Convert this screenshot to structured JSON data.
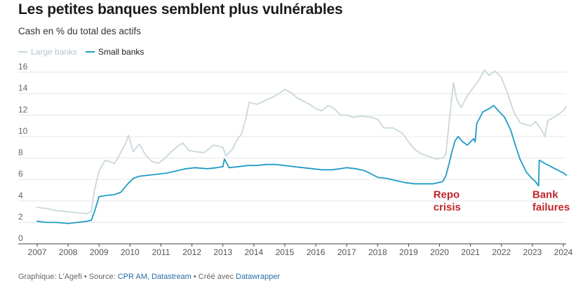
{
  "title": "Les petites banques semblent plus vulnérables",
  "subtitle": "Cash en % du total des actifs",
  "legend": {
    "large": "Large banks",
    "small": "Small banks"
  },
  "footer": {
    "prefix": "Graphique: L'Agefi • Source: ",
    "source_link": "CPR AM, Datastream",
    "middle": " • Créé avec ",
    "tool_link": "Datawrapper"
  },
  "colors": {
    "large": "#c8d8db",
    "small": "#1f9cc4",
    "annotation": "#c0262d",
    "grid": "#e6e6e6"
  },
  "chart_data": {
    "type": "line",
    "title": "Les petites banques semblent plus vulnérables",
    "ylabel": "Cash en % du total des actifs",
    "xlabel": "",
    "xlim": [
      2007,
      2024
    ],
    "ylim": [
      0,
      16
    ],
    "yticks": [
      0,
      2,
      4,
      6,
      8,
      10,
      12,
      14,
      16
    ],
    "xticks": [
      "2007",
      "2008",
      "2009",
      "2010",
      "2011",
      "2012",
      "2013",
      "2014",
      "2015",
      "2016",
      "2017",
      "2018",
      "2019",
      "2020",
      "2021",
      "2022",
      "2023",
      "2024"
    ],
    "grid": true,
    "legend_position": "top-left",
    "annotations": [
      {
        "lines": [
          "Repo",
          "crisis"
        ],
        "x": 2019.8,
        "y": 4.4
      },
      {
        "lines": [
          "Bank",
          "failures"
        ],
        "x": 2023.0,
        "y": 4.4
      }
    ],
    "series": [
      {
        "name": "Large banks",
        "points": [
          [
            2007.0,
            3.4
          ],
          [
            2007.3,
            3.3
          ],
          [
            2007.6,
            3.1
          ],
          [
            2008.0,
            3.0
          ],
          [
            2008.3,
            2.9
          ],
          [
            2008.6,
            2.8
          ],
          [
            2008.75,
            3.0
          ],
          [
            2008.85,
            5.0
          ],
          [
            2009.0,
            6.8
          ],
          [
            2009.2,
            7.8
          ],
          [
            2009.5,
            7.5
          ],
          [
            2009.7,
            8.5
          ],
          [
            2009.85,
            9.3
          ],
          [
            2009.95,
            10.1
          ],
          [
            2010.1,
            8.6
          ],
          [
            2010.3,
            9.3
          ],
          [
            2010.5,
            8.3
          ],
          [
            2010.7,
            7.7
          ],
          [
            2010.9,
            7.5
          ],
          [
            2011.1,
            7.9
          ],
          [
            2011.3,
            8.5
          ],
          [
            2011.5,
            9.0
          ],
          [
            2011.7,
            9.4
          ],
          [
            2011.9,
            8.7
          ],
          [
            2012.1,
            8.6
          ],
          [
            2012.4,
            8.5
          ],
          [
            2012.7,
            9.2
          ],
          [
            2013.0,
            9.0
          ],
          [
            2013.1,
            8.2
          ],
          [
            2013.3,
            8.8
          ],
          [
            2013.5,
            9.9
          ],
          [
            2013.6,
            10.2
          ],
          [
            2013.75,
            11.8
          ],
          [
            2013.85,
            13.2
          ],
          [
            2014.1,
            13.0
          ],
          [
            2014.4,
            13.4
          ],
          [
            2014.7,
            13.8
          ],
          [
            2014.9,
            14.2
          ],
          [
            2015.0,
            14.4
          ],
          [
            2015.2,
            14.1
          ],
          [
            2015.4,
            13.6
          ],
          [
            2015.6,
            13.3
          ],
          [
            2015.8,
            13.0
          ],
          [
            2016.0,
            12.6
          ],
          [
            2016.2,
            12.4
          ],
          [
            2016.4,
            12.9
          ],
          [
            2016.6,
            12.6
          ],
          [
            2016.8,
            12.0
          ],
          [
            2017.0,
            12.0
          ],
          [
            2017.2,
            11.8
          ],
          [
            2017.5,
            11.9
          ],
          [
            2017.8,
            11.8
          ],
          [
            2018.0,
            11.6
          ],
          [
            2018.2,
            10.8
          ],
          [
            2018.5,
            10.8
          ],
          [
            2018.8,
            10.3
          ],
          [
            2019.0,
            9.5
          ],
          [
            2019.2,
            8.8
          ],
          [
            2019.4,
            8.4
          ],
          [
            2019.7,
            8.1
          ],
          [
            2019.9,
            7.9
          ],
          [
            2020.1,
            8.0
          ],
          [
            2020.2,
            8.3
          ],
          [
            2020.35,
            12.5
          ],
          [
            2020.45,
            15.0
          ],
          [
            2020.55,
            13.5
          ],
          [
            2020.7,
            12.7
          ],
          [
            2020.9,
            13.8
          ],
          [
            2021.1,
            14.6
          ],
          [
            2021.3,
            15.4
          ],
          [
            2021.45,
            16.2
          ],
          [
            2021.6,
            15.7
          ],
          [
            2021.8,
            16.1
          ],
          [
            2022.0,
            15.5
          ],
          [
            2022.2,
            14.0
          ],
          [
            2022.4,
            12.3
          ],
          [
            2022.6,
            11.3
          ],
          [
            2022.8,
            11.1
          ],
          [
            2022.95,
            11.0
          ],
          [
            2023.1,
            11.4
          ],
          [
            2023.3,
            10.6
          ],
          [
            2023.4,
            10.0
          ],
          [
            2023.5,
            11.5
          ],
          [
            2023.7,
            11.8
          ],
          [
            2023.9,
            12.2
          ],
          [
            2024.0,
            12.4
          ],
          [
            2024.1,
            12.8
          ]
        ]
      },
      {
        "name": "Small banks",
        "points": [
          [
            2007.0,
            2.1
          ],
          [
            2007.3,
            2.0
          ],
          [
            2007.6,
            2.0
          ],
          [
            2008.0,
            1.9
          ],
          [
            2008.3,
            2.0
          ],
          [
            2008.6,
            2.1
          ],
          [
            2008.75,
            2.2
          ],
          [
            2008.85,
            3.0
          ],
          [
            2009.0,
            4.4
          ],
          [
            2009.2,
            4.5
          ],
          [
            2009.5,
            4.6
          ],
          [
            2009.7,
            4.8
          ],
          [
            2009.9,
            5.5
          ],
          [
            2010.1,
            6.1
          ],
          [
            2010.3,
            6.3
          ],
          [
            2010.6,
            6.4
          ],
          [
            2010.9,
            6.5
          ],
          [
            2011.2,
            6.6
          ],
          [
            2011.5,
            6.8
          ],
          [
            2011.8,
            7.0
          ],
          [
            2012.1,
            7.1
          ],
          [
            2012.5,
            7.0
          ],
          [
            2012.8,
            7.1
          ],
          [
            2013.0,
            7.2
          ],
          [
            2013.05,
            7.9
          ],
          [
            2013.2,
            7.1
          ],
          [
            2013.5,
            7.2
          ],
          [
            2013.8,
            7.3
          ],
          [
            2014.1,
            7.3
          ],
          [
            2014.4,
            7.4
          ],
          [
            2014.7,
            7.4
          ],
          [
            2015.0,
            7.3
          ],
          [
            2015.3,
            7.2
          ],
          [
            2015.6,
            7.1
          ],
          [
            2015.9,
            7.0
          ],
          [
            2016.2,
            6.9
          ],
          [
            2016.5,
            6.9
          ],
          [
            2016.8,
            7.0
          ],
          [
            2017.0,
            7.1
          ],
          [
            2017.3,
            7.0
          ],
          [
            2017.6,
            6.8
          ],
          [
            2017.8,
            6.5
          ],
          [
            2018.0,
            6.2
          ],
          [
            2018.3,
            6.1
          ],
          [
            2018.6,
            5.9
          ],
          [
            2018.9,
            5.7
          ],
          [
            2019.2,
            5.6
          ],
          [
            2019.5,
            5.6
          ],
          [
            2019.8,
            5.6
          ],
          [
            2020.1,
            5.8
          ],
          [
            2020.2,
            6.3
          ],
          [
            2020.3,
            7.4
          ],
          [
            2020.4,
            8.6
          ],
          [
            2020.5,
            9.6
          ],
          [
            2020.6,
            10.0
          ],
          [
            2020.75,
            9.5
          ],
          [
            2020.9,
            9.2
          ],
          [
            2021.1,
            9.8
          ],
          [
            2021.15,
            9.5
          ],
          [
            2021.2,
            11.2
          ],
          [
            2021.4,
            12.3
          ],
          [
            2021.6,
            12.6
          ],
          [
            2021.75,
            12.9
          ],
          [
            2021.9,
            12.4
          ],
          [
            2022.1,
            11.8
          ],
          [
            2022.3,
            10.6
          ],
          [
            2022.45,
            9.2
          ],
          [
            2022.6,
            7.9
          ],
          [
            2022.8,
            6.7
          ],
          [
            2022.95,
            6.2
          ],
          [
            2023.1,
            5.8
          ],
          [
            2023.2,
            5.4
          ],
          [
            2023.22,
            7.8
          ],
          [
            2023.4,
            7.5
          ],
          [
            2023.6,
            7.2
          ],
          [
            2023.8,
            6.9
          ],
          [
            2024.0,
            6.6
          ],
          [
            2024.1,
            6.4
          ]
        ]
      }
    ]
  }
}
